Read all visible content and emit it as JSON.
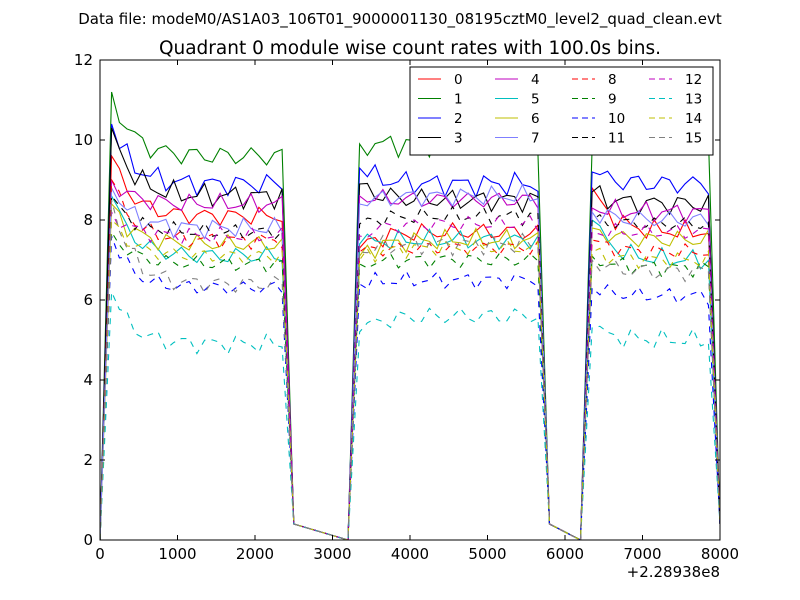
{
  "figure": {
    "suptitle": "Data file: modeM0/AS1A03_106T01_9000001130_08195cztM0_level2_quad_clean.evt"
  },
  "chart_data": {
    "type": "line",
    "title": "Quadrant 0 module wise count rates with 100.0s bins.",
    "xlabel": "",
    "ylabel": "",
    "x_offset_label": "+2.28938e8",
    "xlim": [
      0,
      8000
    ],
    "ylim": [
      0,
      12
    ],
    "x_ticks": [
      0,
      1000,
      2000,
      3000,
      4000,
      5000,
      6000,
      7000,
      8000
    ],
    "y_ticks": [
      0,
      2,
      4,
      6,
      8,
      10,
      12
    ],
    "grid": false,
    "legend_position": "top-right",
    "x_segments": [
      {
        "start": 150,
        "end": 2350
      },
      {
        "start": 3350,
        "end": 5650
      },
      {
        "start": 6350,
        "end": 7850
      }
    ],
    "series": [
      {
        "name": "0",
        "color": "#ff0000",
        "dash": "solid",
        "segment_means": [
          8.1,
          7.7,
          7.7
        ],
        "segment_starts": [
          9.6,
          7.3,
          8.8
        ],
        "amplitude": 0.3
      },
      {
        "name": "1",
        "color": "#008000",
        "dash": "solid",
        "segment_means": [
          9.6,
          9.9,
          10.1
        ],
        "segment_starts": [
          11.2,
          9.9,
          9.8
        ],
        "amplitude": 0.35
      },
      {
        "name": "2",
        "color": "#0000ff",
        "dash": "solid",
        "segment_means": [
          8.9,
          8.9,
          8.9
        ],
        "segment_starts": [
          10.4,
          9.3,
          9.2
        ],
        "amplitude": 0.35
      },
      {
        "name": "3",
        "color": "#000000",
        "dash": "solid",
        "segment_means": [
          8.6,
          8.5,
          8.4
        ],
        "segment_starts": [
          10.3,
          8.9,
          8.7
        ],
        "amplitude": 0.35
      },
      {
        "name": "4",
        "color": "#bf00bf",
        "dash": "solid",
        "segment_means": [
          8.4,
          8.5,
          8.2
        ],
        "segment_starts": [
          9.0,
          8.6,
          8.3
        ],
        "amplitude": 0.3
      },
      {
        "name": "5",
        "color": "#00bfbf",
        "dash": "solid",
        "segment_means": [
          7.1,
          7.5,
          7.0
        ],
        "segment_starts": [
          8.6,
          7.4,
          8.0
        ],
        "amplitude": 0.3
      },
      {
        "name": "6",
        "color": "#bfbf00",
        "dash": "solid",
        "segment_means": [
          7.4,
          7.5,
          7.5
        ],
        "segment_starts": [
          8.4,
          7.1,
          7.8
        ],
        "amplitude": 0.3
      },
      {
        "name": "7",
        "color": "#7f7fff",
        "dash": "solid",
        "segment_means": [
          7.8,
          8.6,
          8.0
        ],
        "segment_starts": [
          8.8,
          8.4,
          8.2
        ],
        "amplitude": 0.3
      },
      {
        "name": "8",
        "color": "#ff0000",
        "dash": "dashed",
        "segment_means": [
          7.5,
          7.3,
          7.2
        ],
        "segment_starts": [
          9.0,
          7.2,
          7.5
        ],
        "amplitude": 0.25
      },
      {
        "name": "9",
        "color": "#008000",
        "dash": "dashed",
        "segment_means": [
          6.9,
          7.0,
          6.8
        ],
        "segment_starts": [
          7.7,
          6.9,
          7.1
        ],
        "amplitude": 0.25
      },
      {
        "name": "10",
        "color": "#0000ff",
        "dash": "dashed",
        "segment_means": [
          6.3,
          6.5,
          6.1
        ],
        "segment_starts": [
          7.6,
          6.4,
          6.3
        ],
        "amplitude": 0.25
      },
      {
        "name": "11",
        "color": "#000000",
        "dash": "dashed",
        "segment_means": [
          7.7,
          8.1,
          7.9
        ],
        "segment_starts": [
          8.6,
          7.9,
          8.0
        ],
        "amplitude": 0.25
      },
      {
        "name": "12",
        "color": "#bf00bf",
        "dash": "dashed",
        "segment_means": [
          7.6,
          7.9,
          7.7
        ],
        "segment_starts": [
          8.2,
          7.6,
          7.7
        ],
        "amplitude": 0.25
      },
      {
        "name": "13",
        "color": "#00bfbf",
        "dash": "dashed",
        "segment_means": [
          4.9,
          5.6,
          5.0
        ],
        "segment_starts": [
          6.2,
          5.2,
          5.3
        ],
        "amplitude": 0.3
      },
      {
        "name": "14",
        "color": "#bfbf00",
        "dash": "dashed",
        "segment_means": [
          7.1,
          7.3,
          7.0
        ],
        "segment_starts": [
          8.0,
          7.0,
          7.2
        ],
        "amplitude": 0.25
      },
      {
        "name": "15",
        "color": "#808080",
        "dash": "dashed",
        "segment_means": [
          6.4,
          7.4,
          6.7
        ],
        "segment_starts": [
          8.5,
          7.2,
          7.0
        ],
        "amplitude": 0.3
      }
    ]
  }
}
